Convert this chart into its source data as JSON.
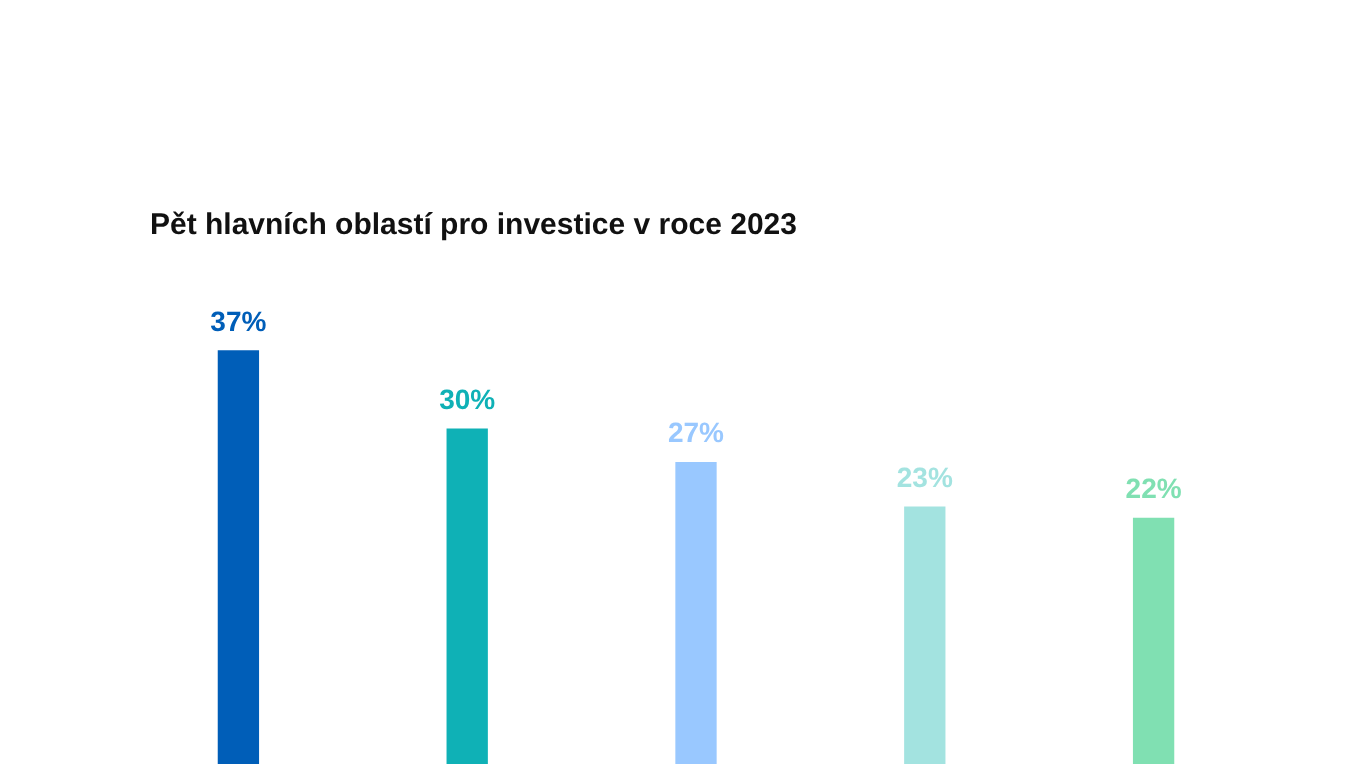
{
  "chart_data": {
    "type": "bar",
    "title": "Pět hlavních oblastí pro investice v roce 2023",
    "categories": [
      null,
      null,
      null,
      null,
      null
    ],
    "values": [
      37,
      30,
      27,
      23,
      22
    ],
    "colors": [
      "#005eb8",
      "#0fb1b6",
      "#99c8ff",
      "#a3e3e0",
      "#80e0b2"
    ],
    "value_labels": [
      "37%",
      "30%",
      "27%",
      "23%",
      "22%"
    ]
  }
}
